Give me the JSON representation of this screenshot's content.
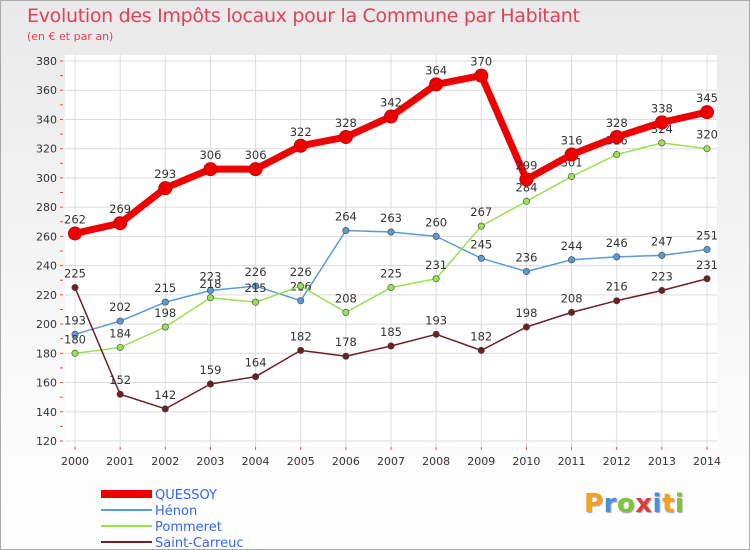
{
  "chart_data": {
    "type": "line",
    "title": "Evolution des Impôts locaux pour la Commune par Habitant",
    "subtitle": "(en € et par an)",
    "xlabel": "",
    "ylabel": "",
    "categories": [
      "2000",
      "2001",
      "2002",
      "2003",
      "2004",
      "2005",
      "2006",
      "2007",
      "2008",
      "2009",
      "2010",
      "2011",
      "2012",
      "2013",
      "2014"
    ],
    "ylim": [
      120,
      380
    ],
    "yticks": [
      120,
      140,
      160,
      180,
      200,
      220,
      240,
      260,
      280,
      300,
      320,
      340,
      360,
      380
    ],
    "grid": true,
    "legend_position": "bottom-left",
    "series": [
      {
        "name": "QUESSOY",
        "color": "#ee0000",
        "emphasis": true,
        "values": [
          262,
          269,
          293,
          306,
          306,
          322,
          328,
          342,
          364,
          370,
          299,
          316,
          328,
          338,
          345
        ]
      },
      {
        "name": "Hénon",
        "color": "#5b9bd5",
        "emphasis": false,
        "values": [
          193,
          202,
          215,
          223,
          226,
          216,
          264,
          263,
          260,
          245,
          236,
          244,
          246,
          247,
          251
        ]
      },
      {
        "name": "Pommeret",
        "color": "#99e055",
        "emphasis": false,
        "values": [
          180,
          184,
          198,
          218,
          215,
          226,
          208,
          225,
          231,
          267,
          284,
          301,
          316,
          324,
          320
        ]
      },
      {
        "name": "Saint-Carreuc",
        "color": "#6e1f26",
        "emphasis": false,
        "values": [
          225,
          152,
          142,
          159,
          164,
          182,
          178,
          185,
          193,
          182,
          198,
          208,
          216,
          223,
          231
        ]
      }
    ]
  },
  "legend_label_color": "#3366ee",
  "logo": {
    "letters": [
      "P",
      "r",
      "o",
      "x",
      "i",
      "t",
      "i"
    ],
    "colors": [
      "#f6a21e",
      "#4a8fd9",
      "#7cc43a",
      "#e23b3b",
      "#4a8fd9",
      "#f6a21e",
      "#7cc43a"
    ]
  }
}
